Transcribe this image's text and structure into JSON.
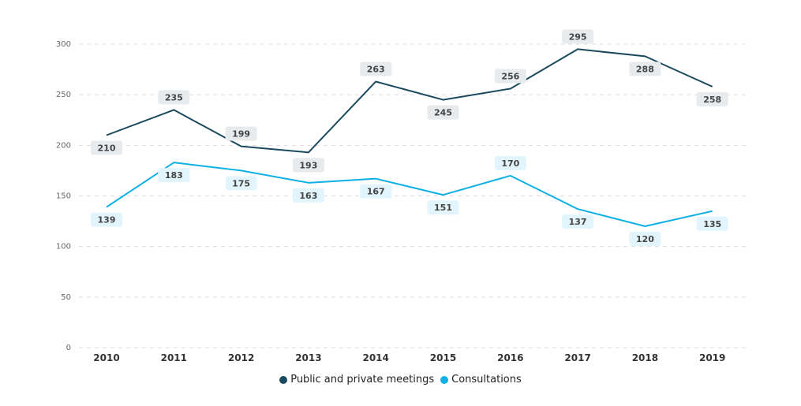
{
  "chart_data": {
    "type": "line",
    "title": "",
    "xlabel": "",
    "ylabel": "",
    "ylim": [
      0,
      300
    ],
    "yticks": [
      "0",
      "50",
      "100",
      "150",
      "200",
      "250",
      "300"
    ],
    "categories": [
      "2010",
      "2011",
      "2012",
      "2013",
      "2014",
      "2015",
      "2016",
      "2017",
      "2018",
      "2019"
    ],
    "grid": true,
    "legend_position": "bottom-center",
    "series": [
      {
        "name": "Public and private meetings",
        "color": "#1b4a5e",
        "label_bg": "#e8ebed",
        "values": [
          210,
          235,
          199,
          193,
          263,
          245,
          256,
          295,
          288,
          258
        ],
        "label_side": [
          "below",
          "above",
          "above",
          "below",
          "above",
          "below",
          "above",
          "above",
          "below",
          "below"
        ]
      },
      {
        "name": "Consultations",
        "color": "#0fb0e6",
        "label_bg": "#e2f5fc",
        "values": [
          139,
          183,
          175,
          163,
          167,
          151,
          170,
          137,
          120,
          135
        ],
        "label_side": [
          "below",
          "below",
          "below",
          "below",
          "below",
          "below",
          "above",
          "below",
          "below",
          "below"
        ]
      }
    ]
  }
}
